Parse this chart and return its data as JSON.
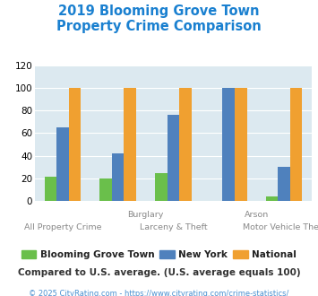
{
  "title": "2019 Blooming Grove Town\nProperty Crime Comparison",
  "categories": [
    "All Property Crime",
    "Burglary",
    "Larceny & Theft",
    "Arson",
    "Motor Vehicle Theft"
  ],
  "x_labels_top": {
    "1.5": "Burglary",
    "3.5": "Arson"
  },
  "x_labels_bottom": {
    "0": "All Property Crime",
    "2": "Larceny & Theft",
    "4": "Motor Vehicle Theft"
  },
  "series": {
    "Blooming Grove Town": [
      22,
      20,
      25,
      0,
      4
    ],
    "New York": [
      65,
      42,
      76,
      100,
      30
    ],
    "National": [
      100,
      100,
      100,
      100,
      100
    ]
  },
  "colors": {
    "Blooming Grove Town": "#6abf4b",
    "New York": "#4f81bd",
    "National": "#f0a030"
  },
  "ylim": [
    0,
    120
  ],
  "yticks": [
    0,
    20,
    40,
    60,
    80,
    100,
    120
  ],
  "title_color": "#1a80d0",
  "title_fontsize": 10.5,
  "plot_bg_color": "#dce9f0",
  "legend_text_color": "#222222",
  "footer_text": "Compared to U.S. average. (U.S. average equals 100)",
  "copyright_text": "© 2025 CityRating.com - https://www.cityrating.com/crime-statistics/",
  "footer_color": "#333333",
  "copyright_color": "#4a90d0"
}
